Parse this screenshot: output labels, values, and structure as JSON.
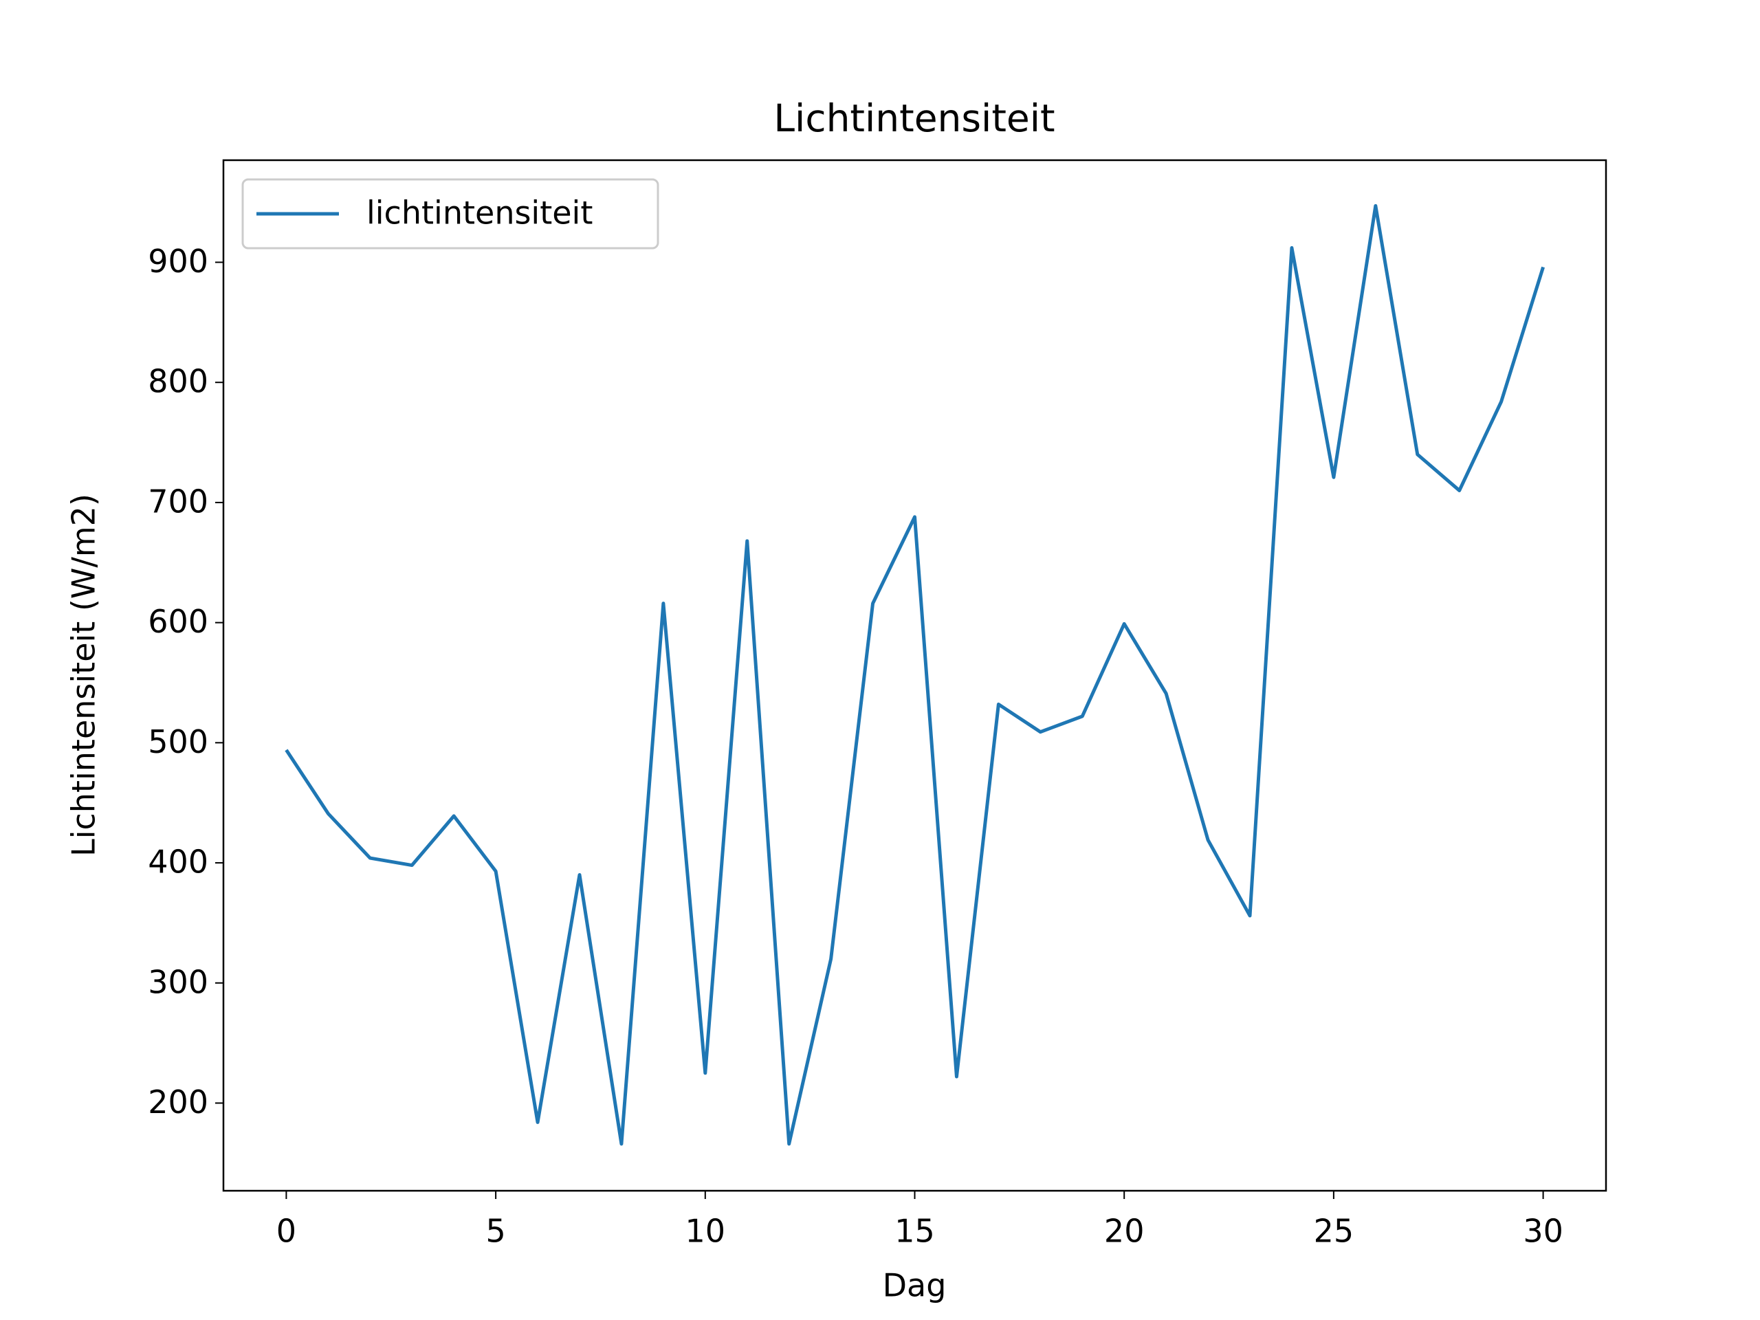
{
  "chart_data": {
    "type": "line",
    "title": "Lichtintensiteit",
    "x_label": "Dag",
    "y_label": "Lichtintensiteit (W/m2)",
    "x": [
      0,
      1,
      2,
      3,
      4,
      5,
      6,
      7,
      8,
      9,
      10,
      11,
      12,
      13,
      14,
      15,
      16,
      17,
      18,
      19,
      20,
      21,
      22,
      23,
      24,
      25,
      26,
      27,
      28,
      29,
      30
    ],
    "series": [
      {
        "name": "lichtintensiteit",
        "color": "#1f77b4",
        "values": [
          494,
          441,
          404,
          398,
          439,
          393,
          184,
          390,
          166,
          616,
          225,
          668,
          166,
          320,
          616,
          688,
          222,
          532,
          509,
          522,
          599,
          541,
          419,
          356,
          912,
          721,
          947,
          740,
          710,
          784,
          896
        ]
      }
    ],
    "xlim": [
      -1.5,
      31.5
    ],
    "xticks": [
      0,
      5,
      10,
      15,
      20,
      25,
      30
    ],
    "ylim": [
      127,
      985
    ],
    "yticks": [
      200,
      300,
      400,
      500,
      600,
      700,
      800,
      900
    ],
    "legend": "upper left",
    "grid": false
  }
}
